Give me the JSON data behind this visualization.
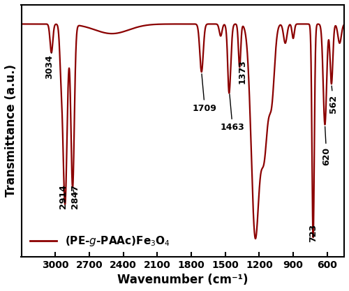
{
  "title": "",
  "xlabel": "Wavenumber (cm⁻¹)",
  "ylabel": "Transmittance (a.u.)",
  "xmin": 3300,
  "xmax": 450,
  "ymin": 0.0,
  "ymax": 1.05,
  "line_color": "#8B0000",
  "line_width": 1.6,
  "background_color": "#ffffff",
  "xticks": [
    3000,
    2700,
    2400,
    2100,
    1800,
    1500,
    1200,
    900,
    600
  ],
  "annotations": [
    {
      "label": "3034",
      "xpk": 3034,
      "xtxt": 3055,
      "ytxt": 0.74,
      "ha": "center",
      "rotation": 90
    },
    {
      "label": "2914",
      "xpk": 2914,
      "xtxt": 2930,
      "ytxt": 0.2,
      "ha": "center",
      "rotation": 90
    },
    {
      "label": "2847",
      "xpk": 2847,
      "xtxt": 2825,
      "ytxt": 0.2,
      "ha": "center",
      "rotation": 90
    },
    {
      "label": "1709",
      "xpk": 1709,
      "xtxt": 1680,
      "ytxt": 0.6,
      "ha": "center",
      "rotation": 0
    },
    {
      "label": "1463",
      "xpk": 1463,
      "xtxt": 1435,
      "ytxt": 0.52,
      "ha": "center",
      "rotation": 0
    },
    {
      "label": "1373",
      "xpk": 1373,
      "xtxt": 1348,
      "ytxt": 0.72,
      "ha": "center",
      "rotation": 90
    },
    {
      "label": "723",
      "xpk": 723,
      "xtxt": 723,
      "ytxt": 0.06,
      "ha": "center",
      "rotation": 90
    },
    {
      "label": "620",
      "xpk": 620,
      "xtxt": 605,
      "ytxt": 0.38,
      "ha": "center",
      "rotation": 90
    },
    {
      "label": "562",
      "xpk": 562,
      "xtxt": 545,
      "ytxt": 0.6,
      "ha": "center",
      "rotation": 90
    }
  ],
  "legend_label": "(PE-g-PAAc)Fe₃O₄"
}
